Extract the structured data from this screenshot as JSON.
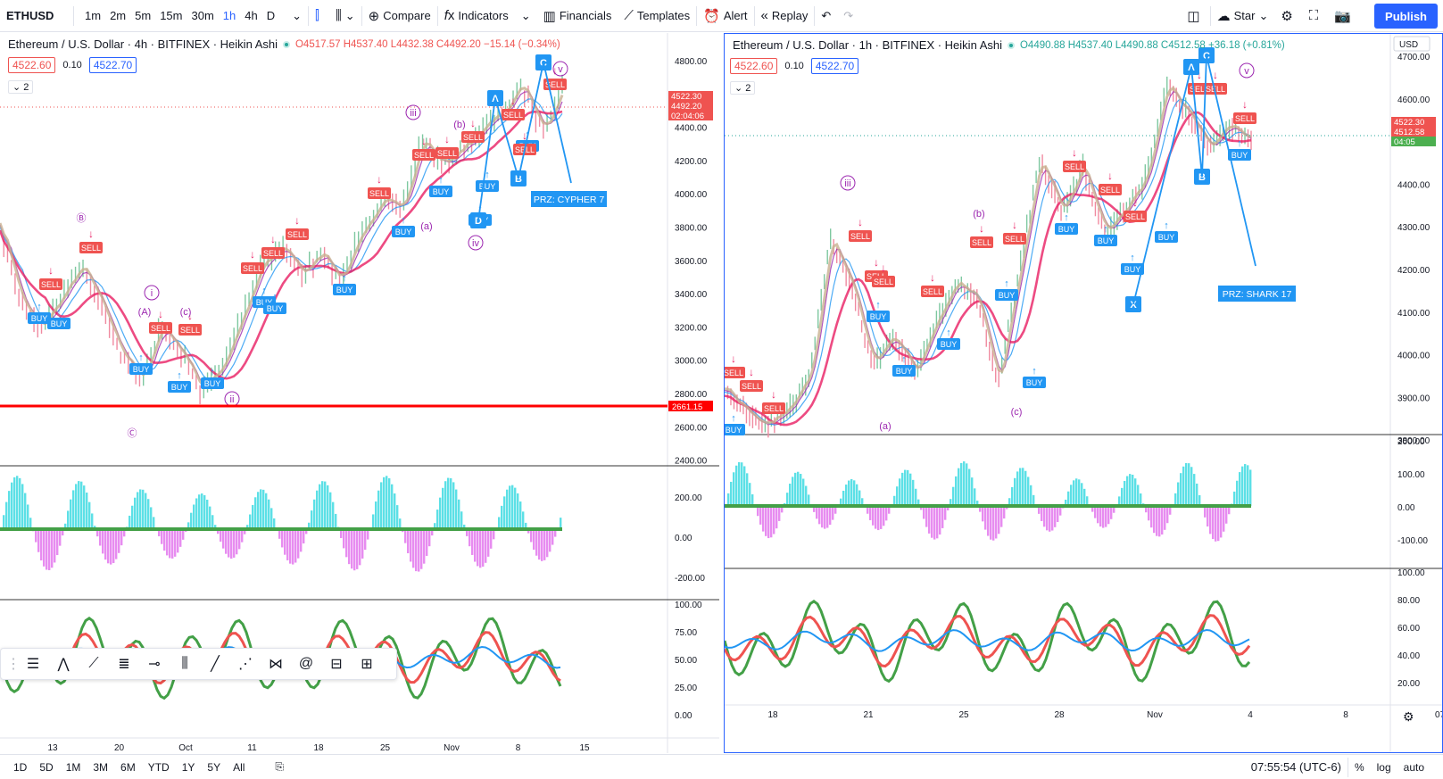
{
  "toolbar": {
    "symbol": "ETHUSD",
    "timeframes": [
      "1m",
      "2m",
      "5m",
      "15m",
      "30m",
      "1h",
      "4h",
      "D"
    ],
    "active_timeframe": "1h",
    "compare": "Compare",
    "indicators": "Indicators",
    "financials": "Financials",
    "templates": "Templates",
    "alert": "Alert",
    "replay": "Replay",
    "star": "Star",
    "publish": "Publish"
  },
  "left": {
    "title": "Ethereum / U.S. Dollar · 4h · BITFINEX · Heikin Ashi",
    "ohlc": "O4517.57 H4537.40 L4432.38 C4492.20 −15.14 (−0.34%)",
    "bid": "4522.60",
    "spread": "0.10",
    "ask": "4522.70",
    "collapse": "2",
    "price_ticks": [
      "4800.00",
      "4600.00",
      "4400.00",
      "4200.00",
      "4000.00",
      "3800.00",
      "3600.00",
      "3400.00",
      "3200.00",
      "3000.00",
      "2800.00",
      "2600.00",
      "2400.00"
    ],
    "price_tags": [
      "4522.30",
      "4492.20",
      "02:04:06"
    ],
    "hline_label": "2661.15",
    "osc_ticks": [
      "200.00",
      "0.00",
      "-200.00"
    ],
    "rsi_ticks": [
      "100.00",
      "75.00",
      "50.00",
      "25.00",
      "0.00"
    ],
    "time_ticks": [
      "13",
      "20",
      "Oct",
      "11",
      "18",
      "25",
      "Nov",
      "8",
      "15"
    ],
    "prz_label": "PRZ: CYPHER 7",
    "waves": [
      "i",
      "ii",
      "iii",
      "iv",
      "v",
      "(a)",
      "(b)",
      "(c)",
      "(A)",
      "(B)",
      "Ⓑ",
      "Ⓒ"
    ],
    "points": [
      "A",
      "B",
      "C",
      "D"
    ]
  },
  "right": {
    "title": "Ethereum / U.S. Dollar · 1h · BITFINEX · Heikin Ashi",
    "ohlc": "O4490.88 H4537.40 L4490.88 C4512.58 +36.18 (+0.81%)",
    "bid": "4522.60",
    "spread": "0.10",
    "ask": "4522.70",
    "collapse": "2",
    "currency": "USD",
    "price_ticks": [
      "4700.00",
      "4600.00",
      "4500.00",
      "4400.00",
      "4300.00",
      "4200.00",
      "4100.00",
      "4000.00",
      "3900.00",
      "3800.00"
    ],
    "price_tags": [
      "4522.30",
      "4512.58",
      "04:05"
    ],
    "osc_ticks": [
      "200.00",
      "100.00",
      "0.00",
      "-100.00"
    ],
    "rsi_ticks": [
      "100.00",
      "80.00",
      "60.00",
      "40.00",
      "20.00"
    ],
    "time_ticks": [
      "18",
      "21",
      "25",
      "28",
      "Nov",
      "4",
      "8",
      "07:"
    ],
    "prz_label": "PRZ: SHARK 17",
    "waves": [
      "iii",
      "(a)",
      "(b)",
      "(c)",
      "v"
    ],
    "points": [
      "A",
      "B",
      "C",
      "X"
    ]
  },
  "bottom": {
    "ranges": [
      "1D",
      "5D",
      "1M",
      "3M",
      "6M",
      "YTD",
      "1Y",
      "5Y",
      "All"
    ],
    "clock": "07:55:54 (UTC-6)",
    "percent": "%",
    "log": "log",
    "auto": "auto"
  },
  "colors": {
    "accent": "#2962ff",
    "sell": "#ef5350",
    "buy": "#2196f3",
    "wave": "#9c27b0",
    "teal": "#26c6da",
    "magenta": "#e040fb",
    "hline": "#ff0000",
    "ma": "#ef5b7a"
  }
}
